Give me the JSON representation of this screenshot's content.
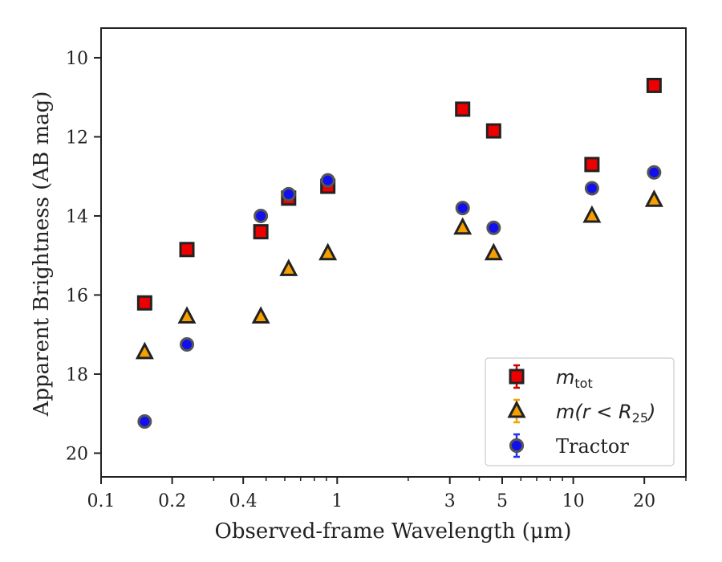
{
  "chart_data": {
    "type": "scatter",
    "title": "",
    "xlabel": "Observed-frame Wavelength (μm)",
    "ylabel": "Apparent Brightness (AB mag)",
    "x_scale": "log",
    "xlim": [
      0.1,
      30
    ],
    "ylim": [
      20.6,
      9.25
    ],
    "y_inverted": true,
    "grid": false,
    "legend_position": "lower-right",
    "x_ticks": [
      {
        "value": 0.1,
        "label": "0.1"
      },
      {
        "value": 0.2,
        "label": "0.2"
      },
      {
        "value": 0.4,
        "label": "0.4"
      },
      {
        "value": 1,
        "label": "1"
      },
      {
        "value": 3,
        "label": "3"
      },
      {
        "value": 5,
        "label": "5"
      },
      {
        "value": 10,
        "label": "10"
      },
      {
        "value": 20,
        "label": "20"
      }
    ],
    "y_ticks": [
      {
        "value": 10,
        "label": "10"
      },
      {
        "value": 12,
        "label": "12"
      },
      {
        "value": 14,
        "label": "14"
      },
      {
        "value": 16,
        "label": "16"
      },
      {
        "value": 18,
        "label": "18"
      },
      {
        "value": 20,
        "label": "20"
      }
    ],
    "series": [
      {
        "name": "m_tot",
        "legend_main": "m",
        "legend_sub": "tot",
        "legend_rest": "",
        "marker": "square",
        "color": "#ee0000",
        "errorbar_color": "#cc0000",
        "x": [
          0.153,
          0.231,
          0.475,
          0.623,
          0.913,
          3.4,
          4.6,
          12.0,
          22.0
        ],
        "y": [
          16.2,
          14.85,
          14.4,
          13.55,
          13.25,
          11.3,
          11.85,
          12.7,
          10.7
        ]
      },
      {
        "name": "m(r < R25)",
        "legend_main": "m(r < R",
        "legend_sub": "25",
        "legend_rest": ")",
        "marker": "triangle",
        "color": "#f5a000",
        "errorbar_color": "#f0a500",
        "x": [
          0.153,
          0.231,
          0.475,
          0.623,
          0.913,
          3.4,
          4.6,
          12.0,
          22.0
        ],
        "y": [
          17.45,
          16.55,
          16.55,
          15.35,
          14.95,
          14.3,
          14.95,
          14.0,
          13.6
        ]
      },
      {
        "name": "Tractor",
        "legend_main": "Tractor",
        "legend_sub": "",
        "legend_rest": "",
        "marker": "circle",
        "color": "#1010ee",
        "errorbar_color": "#2030ee",
        "x": [
          0.153,
          0.231,
          0.475,
          0.623,
          0.913,
          3.4,
          4.6,
          12.0,
          22.0
        ],
        "y": [
          19.2,
          17.25,
          14.0,
          13.45,
          13.1,
          13.8,
          14.3,
          13.3,
          12.9
        ]
      }
    ]
  }
}
